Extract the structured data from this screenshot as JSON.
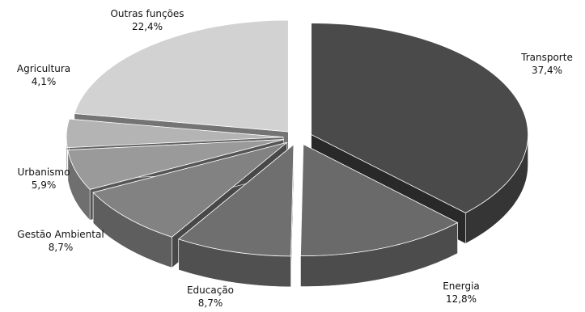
{
  "chart_data": {
    "type": "pie",
    "style": "3d-exploded",
    "categories": [
      "Transporte",
      "Energia",
      "Educação",
      "Gestão Ambiental",
      "Urbanismo",
      "Agricultura",
      "Outras funções"
    ],
    "values": [
      37.4,
      12.8,
      8.7,
      8.7,
      5.9,
      4.1,
      22.4
    ],
    "value_labels": [
      "37,4%",
      "12,8%",
      "8,7%",
      "8,7%",
      "5,9%",
      "4,1%",
      "22,4%"
    ],
    "colors": [
      "#4a4a4a",
      "#6a6a6a",
      "#6f6f6f",
      "#828282",
      "#9a9a9a",
      "#b4b4b4",
      "#d2d2d2"
    ],
    "title": "",
    "legend": "none"
  }
}
